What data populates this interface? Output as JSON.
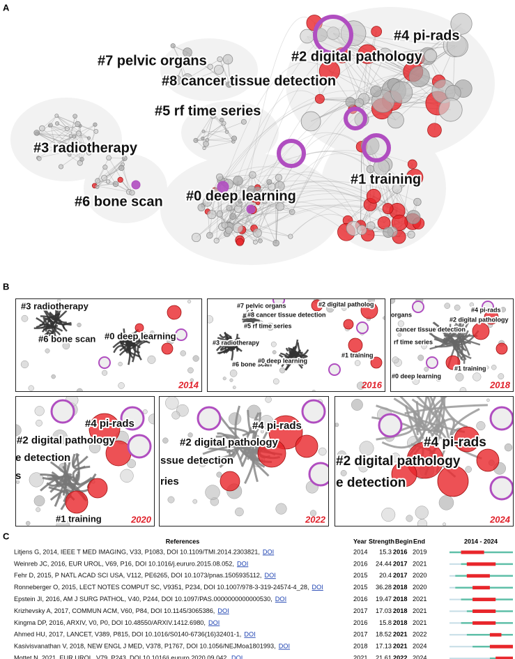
{
  "panel_labels": {
    "a": "A",
    "b": "B",
    "c": "C"
  },
  "network": {
    "clusters": [
      "#7 pelvic organs",
      "#4 pi-rads",
      "#2 digital pathology",
      "#8 cancer tissue detection",
      "#5 rf time series",
      "#3 radiotherapy",
      "#6 bone scan",
      "#0 deep learning",
      "#1 training"
    ]
  },
  "timeslices": [
    {
      "year": 2014,
      "labels": [
        "#3 radiotherapy",
        "#6 bone scan",
        "#0 deep learning"
      ]
    },
    {
      "year": 2016,
      "labels": [
        "#7 pelvic organs",
        "#2 digital patholog",
        "#8 cancer tissue detection",
        "#5 rf time series",
        "#3 radiotherapy",
        "#6 bone scan",
        "#0 deep learning",
        "#1 training"
      ]
    },
    {
      "year": 2018,
      "labels": [
        "organs",
        "#4 pi-rads",
        "#2 digital pathology",
        "cancer tissue detection",
        "rf time series",
        "#1 training",
        "#0 deep learning"
      ]
    },
    {
      "year": 2020,
      "labels": [
        "#4 pi-rads",
        "#2 digital pathology",
        "e detection",
        "s",
        "#1 training"
      ]
    },
    {
      "year": 2022,
      "labels": [
        "#4 pi-rads",
        "#2 digital pathology",
        "ssue detection",
        "ries"
      ]
    },
    {
      "year": 2024,
      "labels": [
        "#4 pi-rads",
        "#2 digital pathology",
        "e detection"
      ]
    }
  ],
  "references": {
    "headers": {
      "references": "References",
      "year": "Year",
      "strength": "Strength",
      "begin": "Begin",
      "end": "End",
      "period": "2014 - 2024"
    },
    "period_start": 2014,
    "period_end": 2024,
    "link_text": "DOI",
    "rows": [
      {
        "reference": "Litjens G, 2014, IEEE T MED IMAGING, V33, P1083, DOI 10.1109/TMI.2014.2303821,",
        "year": 2014,
        "strength": 15.3,
        "begin": 2016,
        "end": 2019
      },
      {
        "reference": "Weinreb JC, 2016, EUR UROL, V69, P16, DOI 10.1016/j.eururo.2015.08.052,",
        "year": 2016,
        "strength": 24.44,
        "begin": 2017,
        "end": 2021
      },
      {
        "reference": "Fehr D, 2015, P NATL ACAD SCI USA, V112, PE6265, DOI 10.1073/pnas.1505935112,",
        "year": 2015,
        "strength": 20.4,
        "begin": 2017,
        "end": 2020
      },
      {
        "reference": "Ronneberger O, 2015, LECT NOTES COMPUT SC, V9351, P234, DOI 10.1007/978-3-319-24574-4_28,",
        "year": 2015,
        "strength": 36.28,
        "begin": 2018,
        "end": 2020
      },
      {
        "reference": "Epstein JI, 2016, AM J SURG PATHOL, V40, P244, DOI 10.1097/PAS.0000000000000530,",
        "year": 2016,
        "strength": 19.47,
        "begin": 2018,
        "end": 2021
      },
      {
        "reference": "Krizhevsky A, 2017, COMMUN ACM, V60, P84, DOI 10.1145/3065386,",
        "year": 2017,
        "strength": 17.03,
        "begin": 2018,
        "end": 2021
      },
      {
        "reference": "Kingma DP, 2016, ARXIV, V0, P0, DOI 10.48550/ARXIV.1412.6980,",
        "year": 2016,
        "strength": 15.8,
        "begin": 2018,
        "end": 2021
      },
      {
        "reference": "Ahmed HU, 2017, LANCET, V389, P815, DOI 10.1016/S0140-6736(16)32401-1,",
        "year": 2017,
        "strength": 18.52,
        "begin": 2021,
        "end": 2022
      },
      {
        "reference": "Kasivisvanathan V, 2018, NEW ENGL J MED, V378, P1767, DOI 10.1056/NEJMoa1801993,",
        "year": 2018,
        "strength": 17.13,
        "begin": 2021,
        "end": 2024
      },
      {
        "reference": "Mottet N, 2021, EUR UROL, V79, P243, DOI 10.1016/j.eururo.2020.09.042,",
        "year": 2021,
        "strength": 21.61,
        "begin": 2022,
        "end": 2024
      }
    ]
  }
}
